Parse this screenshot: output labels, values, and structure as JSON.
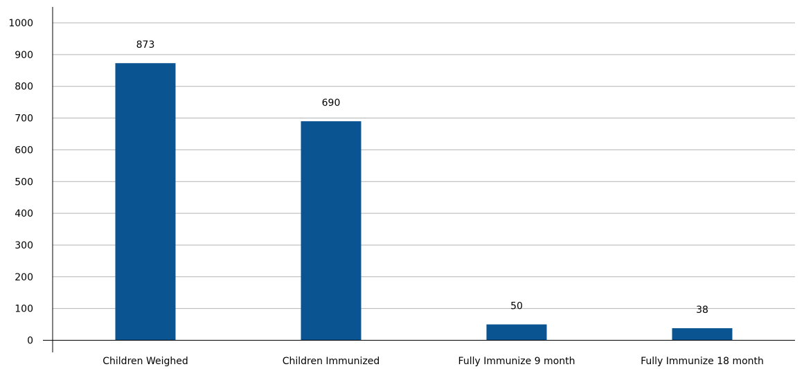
{
  "chart_data": {
    "type": "bar",
    "categories": [
      "Children Weighed",
      "Children Immunized",
      "Fully Immunize 9 month",
      "Fully Immunize 18 month"
    ],
    "values": [
      873,
      690,
      50,
      38
    ],
    "data_labels": [
      "873",
      "690",
      "50",
      "38"
    ],
    "yticks": [
      0,
      100,
      200,
      300,
      400,
      500,
      600,
      700,
      800,
      900,
      1000
    ],
    "ylim": [
      0,
      1000
    ],
    "grid": true,
    "bar_color": "#0a5492"
  }
}
